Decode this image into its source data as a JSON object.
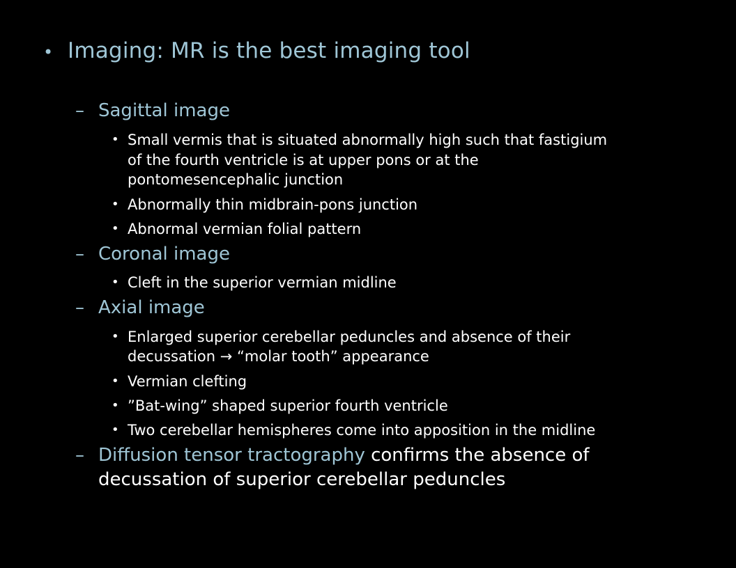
{
  "slide": {
    "heading": {
      "bullet": "•",
      "text": "Imaging: MR is the best imaging tool"
    },
    "sections": [
      {
        "dash": "–",
        "title": "Sagittal image",
        "items": [
          {
            "lines": [
              "Small vermis that is situated abnormally high such that fastigium",
              "of the fourth ventricle is at upper pons or at the",
              "pontomesencephalic junction"
            ]
          },
          {
            "lines": [
              "Abnormally thin midbrain-pons junction"
            ]
          },
          {
            "lines": [
              "Abnormal vermian folial pattern"
            ]
          }
        ]
      },
      {
        "dash": "–",
        "title": "Coronal image",
        "items": [
          {
            "lines": [
              "Cleft in the superior vermian midline"
            ]
          }
        ]
      },
      {
        "dash": "–",
        "title": "Axial image",
        "items": [
          {
            "lines": [
              "Enlarged superior cerebellar peduncles and absence of their",
              "decussation → “molar tooth” appearance"
            ]
          },
          {
            "lines": [
              "Vermian clefting"
            ]
          },
          {
            "lines": [
              "”Bat-wing” shaped superior fourth ventricle"
            ]
          },
          {
            "lines": [
              "Two cerebellar hemispheres come into apposition in the midline"
            ]
          }
        ]
      },
      {
        "dash": "–",
        "title_colored": "Diffusion tensor tractography",
        "title_rest_line1": " confirms the absence of",
        "title_rest_line2": "decussation of superior cerebellar peduncles"
      }
    ],
    "item_bullet": "•",
    "colors": {
      "background": "#000000",
      "accent": "#9fc6d6",
      "text": "#ffffff"
    }
  }
}
